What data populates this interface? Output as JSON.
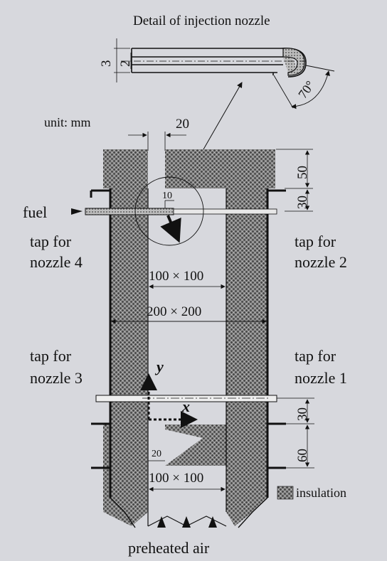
{
  "title": "Detail of injection nozzle",
  "unit": "unit: mm",
  "nozzle_detail": {
    "outer_dim": "3",
    "inner_dim": "2",
    "angle": "70°"
  },
  "dims": {
    "top_gap": "20",
    "top_block": "50",
    "tap_offset": "30",
    "fuel_offset": "10",
    "inner_section": "100 × 100",
    "outer_section": "200 × 200",
    "lower_tap_offset": "30",
    "lower_block": "60",
    "slot_width": "20",
    "bottom_section": "100 × 100"
  },
  "labels": {
    "fuel": "fuel",
    "tap_n4_a": "tap for",
    "tap_n4_b": "nozzle 4",
    "tap_n2_a": "tap for",
    "tap_n2_b": "nozzle 2",
    "tap_n3_a": "tap for",
    "tap_n3_b": "nozzle 3",
    "tap_n1_a": "tap for",
    "tap_n1_b": "nozzle 1",
    "axis_x": "x",
    "axis_y": "y",
    "insulation": "insulation",
    "air": "preheated air"
  },
  "colors": {
    "background": "#d7d8dd",
    "ink": "#111111",
    "insulation": "#6e6e6e"
  }
}
